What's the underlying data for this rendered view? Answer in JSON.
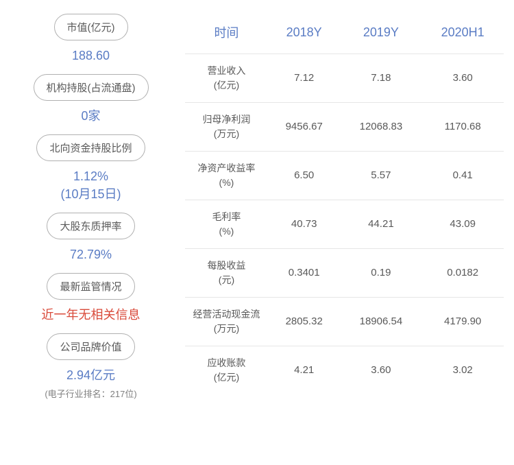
{
  "colors": {
    "header_blue": "#5a7cc4",
    "value_blue": "#5a7cc4",
    "value_red": "#d94a3a",
    "text_gray": "#595959",
    "sub_gray": "#808080",
    "border_gray": "#b0b0b0",
    "row_border": "#e6e6e6"
  },
  "left": {
    "items": [
      {
        "label": "市值(亿元)",
        "value": "188.60",
        "color": "#5a7cc4",
        "sub": ""
      },
      {
        "label": "机构持股(占流通盘)",
        "value": "0家",
        "color": "#5a7cc4",
        "sub": ""
      },
      {
        "label": "北向资金持股比例",
        "value": "1.12%\n(10月15日)",
        "color": "#5a7cc4",
        "sub": ""
      },
      {
        "label": "大股东质押率",
        "value": "72.79%",
        "color": "#5a7cc4",
        "sub": ""
      },
      {
        "label": "最新监管情况",
        "value": "近一年无相关信息",
        "color": "#d94a3a",
        "sub": ""
      },
      {
        "label": "公司品牌价值",
        "value": "2.94亿元",
        "color": "#5a7cc4",
        "sub": "(电子行业排名：217位)"
      }
    ]
  },
  "table": {
    "headers": [
      "时间",
      "2018Y",
      "2019Y",
      "2020H1"
    ],
    "rows": [
      {
        "label": "营业收入",
        "unit": "(亿元)",
        "v1": "7.12",
        "v2": "7.18",
        "v3": "3.60"
      },
      {
        "label": "归母净利润",
        "unit": "(万元)",
        "v1": "9456.67",
        "v2": "12068.83",
        "v3": "1170.68"
      },
      {
        "label": "净资产收益率",
        "unit": "(%)",
        "v1": "6.50",
        "v2": "5.57",
        "v3": "0.41"
      },
      {
        "label": "毛利率",
        "unit": "(%)",
        "v1": "40.73",
        "v2": "44.21",
        "v3": "43.09"
      },
      {
        "label": "每股收益",
        "unit": "(元)",
        "v1": "0.3401",
        "v2": "0.19",
        "v3": "0.0182"
      },
      {
        "label": "经营活动现金流",
        "unit": "(万元)",
        "v1": "2805.32",
        "v2": "18906.54",
        "v3": "4179.90"
      },
      {
        "label": "应收账款",
        "unit": "(亿元)",
        "v1": "4.21",
        "v2": "3.60",
        "v3": "3.02"
      }
    ]
  }
}
